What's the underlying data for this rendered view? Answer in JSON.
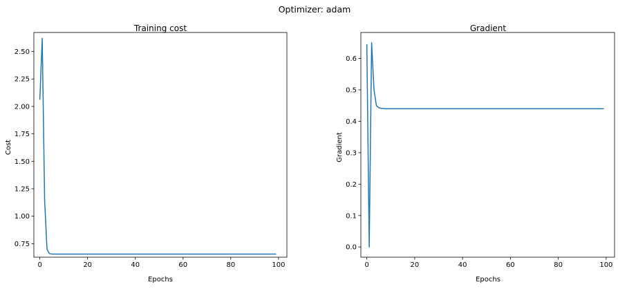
{
  "figure": {
    "suptitle": "Optimizer: adam"
  },
  "chart_data": [
    {
      "type": "line",
      "title": "Training cost",
      "xlabel": "Epochs",
      "ylabel": "Cost",
      "xlim": [
        -2.5,
        103.5
      ],
      "ylim": [
        0.6265,
        2.6735
      ],
      "xticks": [
        0,
        20,
        40,
        60,
        80,
        100
      ],
      "yticks": [
        0.75,
        1.0,
        1.25,
        1.5,
        1.75,
        2.0,
        2.25,
        2.5
      ],
      "ytick_labels": [
        "0.75",
        "1.00",
        "1.25",
        "1.50",
        "1.75",
        "2.00",
        "2.25",
        "2.50"
      ],
      "grid": false,
      "color": "#1f77b4",
      "series": [
        {
          "x": [
            0,
            1,
            2,
            3,
            4,
            5,
            6,
            8,
            10,
            20,
            40,
            60,
            80,
            99
          ],
          "values": [
            2.06,
            2.62,
            1.15,
            0.7,
            0.66,
            0.655,
            0.655,
            0.655,
            0.655,
            0.655,
            0.655,
            0.655,
            0.655,
            0.655
          ]
        }
      ]
    },
    {
      "type": "line",
      "title": "Gradient",
      "xlabel": "Epochs",
      "ylabel": "Gradient",
      "xlim": [
        -2.5,
        103.5
      ],
      "ylim": [
        -0.0325,
        0.6825
      ],
      "xticks": [
        0,
        20,
        40,
        60,
        80,
        100
      ],
      "yticks": [
        0.0,
        0.1,
        0.2,
        0.3,
        0.4,
        0.5,
        0.6
      ],
      "ytick_labels": [
        "0.0",
        "0.1",
        "0.2",
        "0.3",
        "0.4",
        "0.5",
        "0.6"
      ],
      "grid": false,
      "color": "#1f77b4",
      "series": [
        {
          "x": [
            0,
            1,
            2,
            3,
            4,
            5,
            6,
            8,
            10,
            20,
            40,
            60,
            80,
            99
          ],
          "values": [
            0.645,
            0.0,
            0.65,
            0.5,
            0.45,
            0.443,
            0.441,
            0.44,
            0.44,
            0.44,
            0.44,
            0.44,
            0.44,
            0.44
          ]
        }
      ]
    }
  ]
}
